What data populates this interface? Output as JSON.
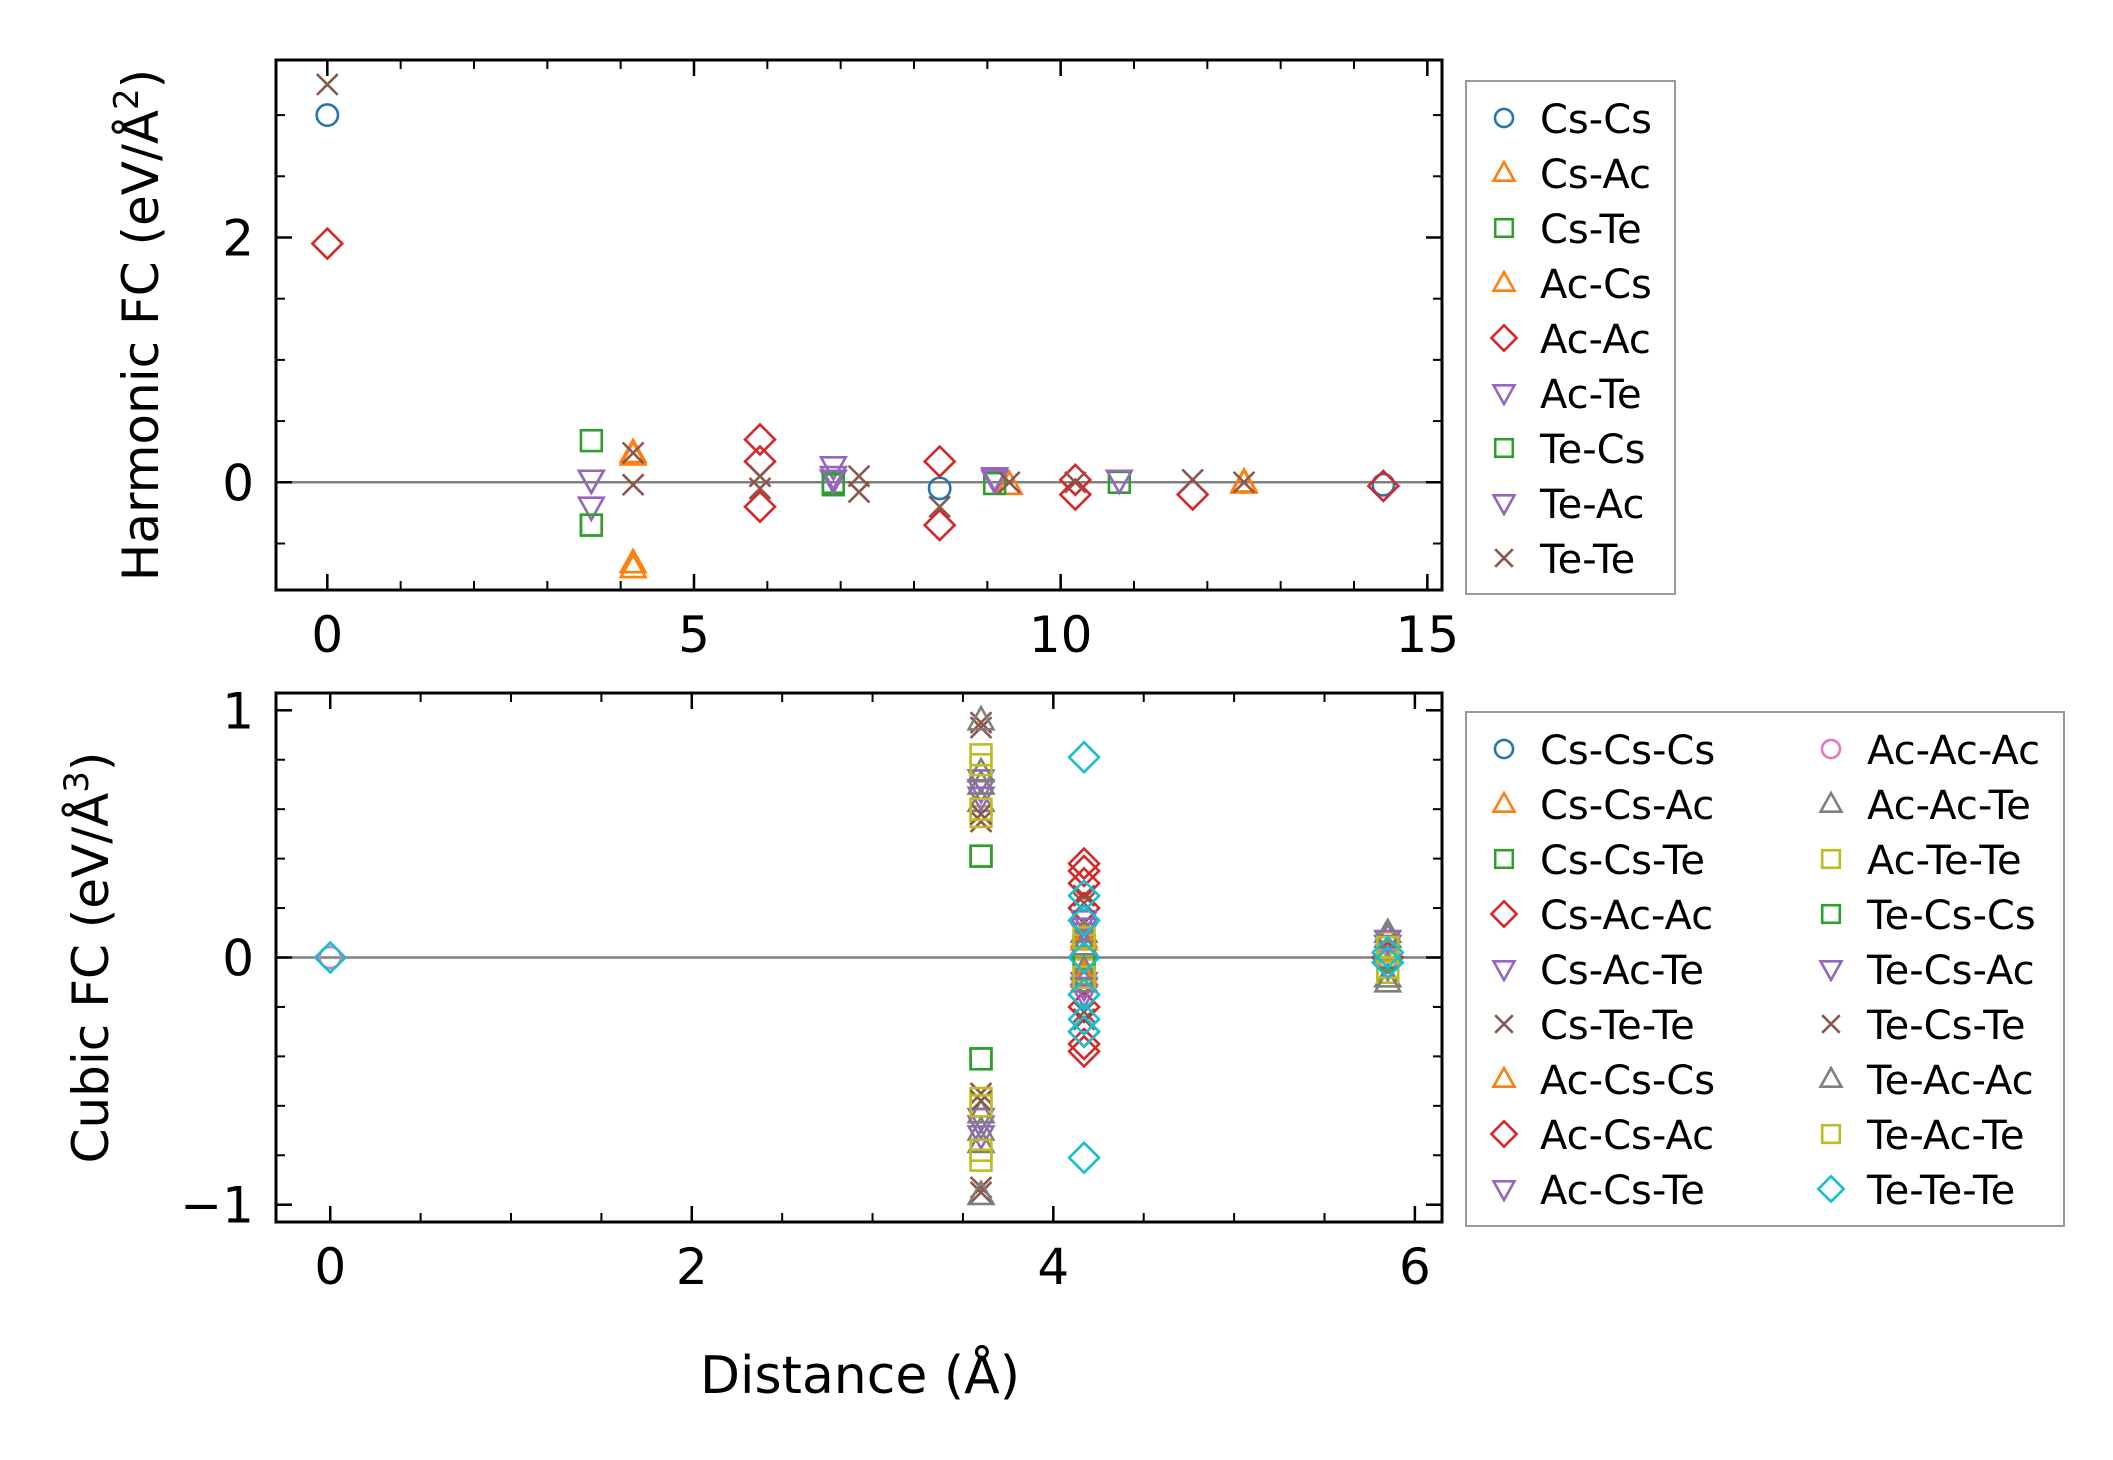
{
  "chart_data": [
    {
      "type": "scatter",
      "panel": "top",
      "ylabel_main": "Harmonic FC (eV/Å",
      "ylabel_sup": "2",
      "ylabel_end": ")",
      "xlabel": "",
      "xlim": [
        -0.7,
        15.2
      ],
      "ylim": [
        -0.88,
        3.45
      ],
      "xticks": [
        0,
        5,
        10,
        15
      ],
      "xtick_labels": [
        "0",
        "5",
        "10",
        "15"
      ],
      "yticks": [
        0,
        2
      ],
      "ytick_labels": [
        "0",
        "2"
      ],
      "x_minor_step": 1,
      "y_minor_step": 0.5,
      "zero_line": true,
      "legend_position": "right",
      "legend_columns": 1,
      "series": [
        {
          "name": "Cs-Cs",
          "marker": "circle",
          "color": "#1f77b4",
          "x": [
            0,
            8.35,
            14.4
          ],
          "y": [
            3.0,
            -0.05,
            -0.02
          ]
        },
        {
          "name": "Cs-Ac",
          "marker": "triangle-up",
          "color": "#ff7f0e",
          "x": [
            4.17,
            4.17,
            9.3,
            12.5
          ],
          "y": [
            0.22,
            -0.7,
            -0.02,
            -0.01
          ]
        },
        {
          "name": "Cs-Te",
          "marker": "square",
          "color": "#2ca02c",
          "x": [
            3.6,
            3.6,
            6.9,
            9.1,
            10.8
          ],
          "y": [
            0.34,
            -0.35,
            0.0,
            -0.01,
            0.0
          ]
        },
        {
          "name": "Ac-Cs",
          "marker": "triangle-up",
          "color": "#ff7f0e",
          "x": [
            4.17,
            4.17,
            12.5
          ],
          "y": [
            0.24,
            -0.66,
            0.0
          ]
        },
        {
          "name": "Ac-Ac",
          "marker": "diamond",
          "color": "#d62728",
          "x": [
            0,
            5.9,
            5.9,
            5.9,
            8.35,
            8.35,
            10.2,
            10.2,
            11.8,
            14.4
          ],
          "y": [
            1.95,
            0.35,
            0.17,
            -0.2,
            0.17,
            -0.35,
            0.02,
            -0.1,
            -0.1,
            -0.03
          ]
        },
        {
          "name": "Ac-Te",
          "marker": "triangle-down",
          "color": "#9467bd",
          "x": [
            3.6,
            3.6,
            6.9,
            6.9,
            9.1,
            10.8
          ],
          "y": [
            0.02,
            -0.2,
            0.13,
            0.02,
            0.04,
            0.02
          ]
        },
        {
          "name": "Te-Cs",
          "marker": "square",
          "color": "#2ca02c",
          "x": [
            3.6,
            6.9
          ],
          "y": [
            -0.35,
            -0.02
          ]
        },
        {
          "name": "Te-Ac",
          "marker": "triangle-down",
          "color": "#9467bd",
          "x": [
            3.6,
            6.9,
            9.1
          ],
          "y": [
            0.02,
            0.05,
            0.02
          ]
        },
        {
          "name": "Te-Te",
          "marker": "x",
          "color": "#8c564b",
          "x": [
            0,
            4.17,
            4.17,
            5.9,
            5.9,
            7.25,
            7.25,
            8.35,
            9.3,
            10.2,
            11.8,
            12.5
          ],
          "y": [
            3.25,
            0.24,
            -0.02,
            0.05,
            -0.05,
            0.05,
            -0.08,
            -0.2,
            0.0,
            0.0,
            0.02,
            0.0
          ]
        }
      ]
    },
    {
      "type": "scatter",
      "panel": "bottom",
      "ylabel_main": "Cubic FC (eV/Å",
      "ylabel_sup": "3",
      "ylabel_end": ")",
      "xlabel": "Distance (Å)",
      "xlim": [
        -0.3,
        6.15
      ],
      "ylim": [
        -1.07,
        1.07
      ],
      "xticks": [
        0,
        2,
        4,
        6
      ],
      "xtick_labels": [
        "0",
        "2",
        "4",
        "6"
      ],
      "yticks": [
        -1,
        0,
        1
      ],
      "ytick_labels": [
        "−1",
        "0",
        "1"
      ],
      "x_minor_step": 0.5,
      "y_minor_step": 0.2,
      "zero_line": true,
      "legend_position": "right",
      "legend_columns": 2,
      "series": [
        {
          "name": "Cs-Cs-Cs",
          "marker": "circle",
          "color": "#1f77b4",
          "x": [
            0,
            4.17,
            5.85
          ],
          "y": [
            0,
            0.0,
            0.0
          ]
        },
        {
          "name": "Cs-Cs-Ac",
          "marker": "triangle-up",
          "color": "#ff7f0e",
          "x": [
            4.17,
            4.17,
            5.85
          ],
          "y": [
            0.07,
            -0.07,
            0.03
          ]
        },
        {
          "name": "Cs-Cs-Te",
          "marker": "square",
          "color": "#2ca02c",
          "x": [
            3.6,
            3.6,
            4.17,
            5.85
          ],
          "y": [
            0.41,
            -0.41,
            0.05,
            0.0
          ]
        },
        {
          "name": "Cs-Ac-Ac",
          "marker": "diamond",
          "color": "#d62728",
          "x": [
            4.17,
            4.17,
            4.17,
            4.17
          ],
          "y": [
            0.38,
            0.3,
            -0.3,
            -0.38
          ]
        },
        {
          "name": "Cs-Ac-Te",
          "marker": "triangle-down",
          "color": "#9467bd",
          "x": [
            3.6,
            3.6,
            4.17,
            4.17,
            5.85
          ],
          "y": [
            0.68,
            -0.68,
            0.1,
            -0.1,
            0.05
          ]
        },
        {
          "name": "Cs-Te-Te",
          "marker": "x",
          "color": "#8c564b",
          "x": [
            3.6,
            3.6,
            3.6,
            3.6,
            4.17,
            4.17
          ],
          "y": [
            0.95,
            0.55,
            -0.55,
            -0.95,
            0.25,
            -0.25
          ]
        },
        {
          "name": "Ac-Cs-Cs",
          "marker": "triangle-up",
          "color": "#ff7f0e",
          "x": [
            4.17,
            4.17,
            5.85
          ],
          "y": [
            0.08,
            -0.08,
            0.02
          ]
        },
        {
          "name": "Ac-Cs-Ac",
          "marker": "diamond",
          "color": "#d62728",
          "x": [
            4.17,
            4.17,
            4.17,
            4.17,
            5.85
          ],
          "y": [
            0.35,
            0.2,
            -0.2,
            -0.35,
            0.0
          ]
        },
        {
          "name": "Ac-Cs-Te",
          "marker": "triangle-down",
          "color": "#9467bd",
          "x": [
            3.6,
            3.6,
            4.17,
            4.17,
            5.85
          ],
          "y": [
            0.72,
            -0.72,
            0.15,
            -0.15,
            -0.04
          ]
        },
        {
          "name": "Ac-Ac-Ac",
          "marker": "circle",
          "color": "#e377c2",
          "x": [
            0,
            4.17,
            5.85
          ],
          "y": [
            0,
            0.0,
            0.0
          ]
        },
        {
          "name": "Ac-Ac-Te",
          "marker": "triangle-up",
          "color": "#7f7f7f",
          "x": [
            3.6,
            3.6,
            3.6,
            3.6,
            4.17,
            4.17,
            5.85,
            5.85
          ],
          "y": [
            0.75,
            0.63,
            -0.63,
            -0.75,
            0.1,
            -0.1,
            0.08,
            -0.08
          ]
        },
        {
          "name": "Ac-Te-Te",
          "marker": "square",
          "color": "#bcbd22",
          "x": [
            3.6,
            3.6,
            3.6,
            3.6,
            4.17,
            4.17,
            5.85,
            5.85
          ],
          "y": [
            0.82,
            0.57,
            -0.57,
            -0.82,
            0.05,
            -0.05,
            0.06,
            -0.06
          ]
        },
        {
          "name": "Te-Cs-Cs",
          "marker": "square",
          "color": "#2ca02c",
          "x": [
            3.6,
            3.6,
            4.17,
            5.85
          ],
          "y": [
            0.41,
            -0.41,
            0.0,
            0.0
          ]
        },
        {
          "name": "Te-Cs-Ac",
          "marker": "triangle-down",
          "color": "#9467bd",
          "x": [
            3.6,
            3.6,
            4.17,
            4.17,
            5.85
          ],
          "y": [
            0.65,
            -0.65,
            0.12,
            -0.12,
            0.07
          ]
        },
        {
          "name": "Te-Cs-Te",
          "marker": "x",
          "color": "#8c564b",
          "x": [
            3.6,
            3.6,
            3.6,
            3.6,
            4.17,
            4.17
          ],
          "y": [
            0.93,
            0.58,
            -0.58,
            -0.93,
            0.22,
            -0.22
          ]
        },
        {
          "name": "Te-Ac-Ac",
          "marker": "triangle-up",
          "color": "#7f7f7f",
          "x": [
            3.6,
            3.6,
            3.6,
            3.6,
            4.17,
            4.17,
            5.85,
            5.85
          ],
          "y": [
            0.96,
            0.7,
            -0.7,
            -0.96,
            0.05,
            -0.05,
            0.1,
            -0.1
          ]
        },
        {
          "name": "Te-Ac-Te",
          "marker": "square",
          "color": "#bcbd22",
          "x": [
            3.6,
            3.6,
            3.6,
            3.6,
            4.17,
            4.17,
            5.85,
            5.85
          ],
          "y": [
            0.78,
            0.6,
            -0.6,
            -0.78,
            0.08,
            -0.08,
            0.04,
            -0.04
          ]
        },
        {
          "name": "Te-Te-Te",
          "marker": "diamond",
          "color": "#17becf",
          "x": [
            0,
            4.17,
            4.17,
            4.17,
            4.17,
            4.17,
            4.17,
            4.17,
            4.17,
            5.85,
            5.85
          ],
          "y": [
            0,
            0.81,
            0.25,
            0.15,
            0.0,
            -0.15,
            -0.25,
            -0.3,
            -0.81,
            0.02,
            -0.02
          ]
        }
      ]
    }
  ]
}
